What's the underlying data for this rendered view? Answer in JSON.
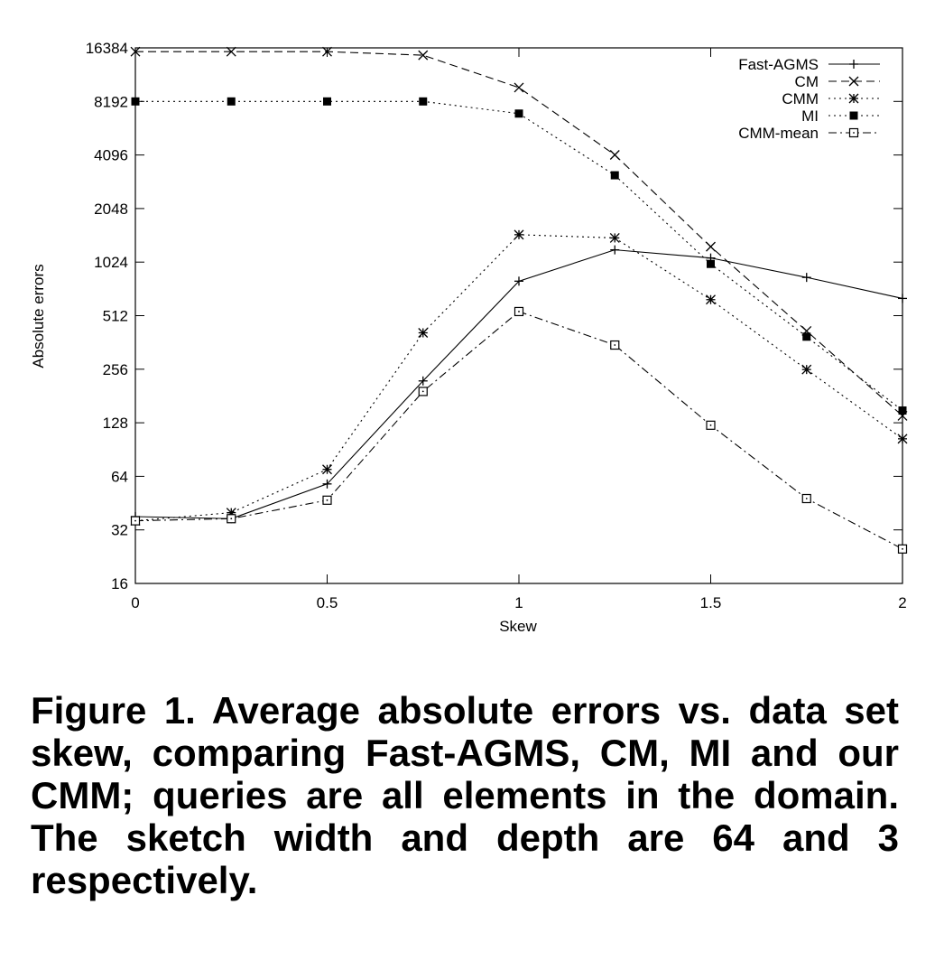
{
  "chart_data": {
    "type": "line",
    "xlabel": "Skew",
    "ylabel": "Absolute errors",
    "xlim": [
      0,
      2
    ],
    "ylim": [
      16,
      16384
    ],
    "y_scale": "log2",
    "x_ticks": [
      0,
      0.5,
      1,
      1.5,
      2
    ],
    "x_tick_labels": [
      "0",
      "0.5",
      "1",
      "1.5",
      "2"
    ],
    "y_ticks": [
      16,
      32,
      64,
      128,
      256,
      512,
      1024,
      2048,
      4096,
      8192,
      16384
    ],
    "y_tick_labels": [
      "16",
      "32",
      "64",
      "128",
      "256",
      "512",
      "1024",
      "2048",
      "4096",
      "8192",
      "16384"
    ],
    "grid": false,
    "legend_position": "top-right",
    "x": [
      0,
      0.25,
      0.5,
      0.75,
      1,
      1.25,
      1.5,
      1.75,
      2
    ],
    "series": [
      {
        "name": "Fast-AGMS",
        "marker": "plus",
        "dash": "solid",
        "values": [
          38,
          37,
          58,
          220,
          800,
          1200,
          1080,
          840,
          640
        ]
      },
      {
        "name": "CM",
        "marker": "x",
        "dash": "dashed",
        "values": [
          15600,
          15600,
          15600,
          14900,
          9800,
          4100,
          1250,
          420,
          140
        ]
      },
      {
        "name": "CMM",
        "marker": "star",
        "dash": "dotted",
        "values": [
          36,
          40,
          70,
          410,
          1460,
          1400,
          630,
          255,
          104
        ]
      },
      {
        "name": "MI",
        "marker": "filled-square",
        "dash": "dotted",
        "values": [
          8192,
          8192,
          8192,
          8192,
          7000,
          3150,
          1000,
          390,
          150
        ]
      },
      {
        "name": "CMM-mean",
        "marker": "open-square",
        "dash": "dashdot",
        "values": [
          36,
          37,
          47,
          192,
          540,
          350,
          124,
          48,
          25
        ]
      }
    ]
  },
  "caption": "Figure 1. Average absolute errors vs.  data set skew, comparing Fast-AGMS, CM, MI and our CMM; queries are all elements in the domain. The sketch width and depth are 64 and 3 respectively."
}
